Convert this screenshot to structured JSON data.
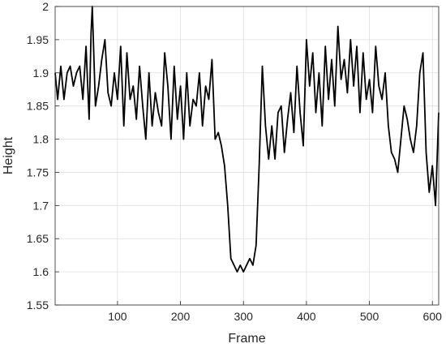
{
  "chart_data": {
    "type": "line",
    "title": "",
    "xlabel": "Frame",
    "ylabel": "Height",
    "xlim": [
      1,
      610
    ],
    "ylim": [
      1.55,
      2
    ],
    "grid": true,
    "xticks": [
      100,
      200,
      300,
      400,
      500,
      600
    ],
    "yticks": [
      1.55,
      1.6,
      1.65,
      1.7,
      1.75,
      1.8,
      1.85,
      1.9,
      1.95,
      2
    ],
    "ytick_labels": [
      "1.55",
      "1.6",
      "1.65",
      "1.7",
      "1.75",
      "1.8",
      "1.85",
      "1.9",
      "1.95",
      "2"
    ],
    "line_color": "#000000",
    "series": [
      {
        "x": [
          1,
          5,
          10,
          15,
          20,
          25,
          30,
          35,
          40,
          45,
          50,
          55,
          58,
          60,
          65,
          70,
          75,
          80,
          85,
          90,
          95,
          100,
          105,
          110,
          115,
          120,
          125,
          130,
          135,
          140,
          145,
          150,
          155,
          160,
          165,
          170,
          175,
          180,
          185,
          190,
          195,
          200,
          205,
          210,
          215,
          220,
          225,
          230,
          235,
          240,
          245,
          250,
          255,
          260,
          265,
          270,
          275,
          280,
          285,
          290,
          295,
          300,
          305,
          310,
          315,
          320,
          325,
          330,
          335,
          340,
          345,
          350,
          355,
          360,
          365,
          370,
          375,
          380,
          385,
          390,
          395,
          400,
          405,
          410,
          415,
          420,
          425,
          430,
          435,
          440,
          445,
          450,
          455,
          460,
          465,
          470,
          475,
          480,
          485,
          490,
          495,
          500,
          505,
          510,
          515,
          520,
          525,
          530,
          535,
          540,
          545,
          550,
          555,
          560,
          565,
          570,
          575,
          580,
          585,
          590,
          595,
          600,
          605,
          610
        ],
        "y": [
          1.9,
          1.86,
          1.91,
          1.86,
          1.9,
          1.91,
          1.88,
          1.9,
          1.91,
          1.86,
          1.94,
          1.83,
          1.96,
          2.0,
          1.85,
          1.88,
          1.92,
          1.95,
          1.87,
          1.85,
          1.9,
          1.86,
          1.94,
          1.82,
          1.93,
          1.86,
          1.88,
          1.83,
          1.91,
          1.85,
          1.8,
          1.9,
          1.82,
          1.87,
          1.84,
          1.82,
          1.93,
          1.88,
          1.8,
          1.91,
          1.83,
          1.88,
          1.8,
          1.9,
          1.82,
          1.86,
          1.85,
          1.9,
          1.82,
          1.88,
          1.86,
          1.92,
          1.8,
          1.81,
          1.79,
          1.76,
          1.7,
          1.62,
          1.61,
          1.6,
          1.61,
          1.6,
          1.61,
          1.62,
          1.61,
          1.64,
          1.76,
          1.91,
          1.82,
          1.77,
          1.82,
          1.77,
          1.84,
          1.85,
          1.78,
          1.83,
          1.87,
          1.81,
          1.91,
          1.84,
          1.79,
          1.95,
          1.88,
          1.93,
          1.84,
          1.9,
          1.82,
          1.94,
          1.86,
          1.92,
          1.85,
          1.97,
          1.89,
          1.92,
          1.87,
          1.95,
          1.88,
          1.94,
          1.84,
          1.93,
          1.86,
          1.89,
          1.84,
          1.94,
          1.88,
          1.86,
          1.9,
          1.82,
          1.78,
          1.77,
          1.75,
          1.8,
          1.85,
          1.83,
          1.8,
          1.78,
          1.82,
          1.9,
          1.93,
          1.78,
          1.72,
          1.76,
          1.7,
          1.84
        ]
      }
    ]
  }
}
